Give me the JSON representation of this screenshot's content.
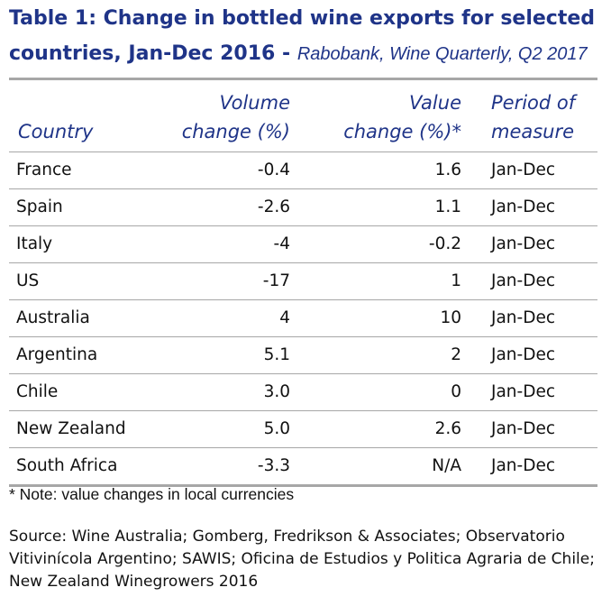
{
  "title": {
    "main": "Table 1: Change in bottled wine exports for selected countries, Jan-Dec 2016",
    "separator": " - ",
    "source": "Rabobank, Wine Quarterly, Q2 2017",
    "color": "#1f3488"
  },
  "table": {
    "headers": {
      "country": [
        "Country"
      ],
      "volume": [
        "Volume",
        "change (%)"
      ],
      "value": [
        "Value",
        "change (%)*"
      ],
      "period": [
        "Period of",
        "measure"
      ]
    },
    "rows": [
      {
        "country": "France",
        "volume": "-0.4",
        "value": "1.6",
        "period": "Jan-Dec"
      },
      {
        "country": "Spain",
        "volume": "-2.6",
        "value": "1.1",
        "period": "Jan-Dec"
      },
      {
        "country": "Italy",
        "volume": "-4",
        "value": "-0.2",
        "period": "Jan-Dec"
      },
      {
        "country": "US",
        "volume": "-17",
        "value": "1",
        "period": "Jan-Dec"
      },
      {
        "country": "Australia",
        "volume": "4",
        "value": "10",
        "period": "Jan-Dec"
      },
      {
        "country": "Argentina",
        "volume": "5.1",
        "value": "2",
        "period": "Jan-Dec"
      },
      {
        "country": "Chile",
        "volume": "3.0",
        "value": "0",
        "period": "Jan-Dec"
      },
      {
        "country": "New Zealand",
        "volume": "5.0",
        "value": "2.6",
        "period": "Jan-Dec"
      },
      {
        "country": "South Africa",
        "volume": "-3.3",
        "value": "N/A",
        "period": "Jan-Dec"
      }
    ]
  },
  "note": "* Note: value changes in local currencies",
  "source": "Source: Wine Australia; Gomberg, Fredrikson & Associates; Observatorio Vitivinícola Argentino; SAWIS; Oficina de Estudios y Politica Agraria de Chile; New Zealand Winegrowers 2016"
}
